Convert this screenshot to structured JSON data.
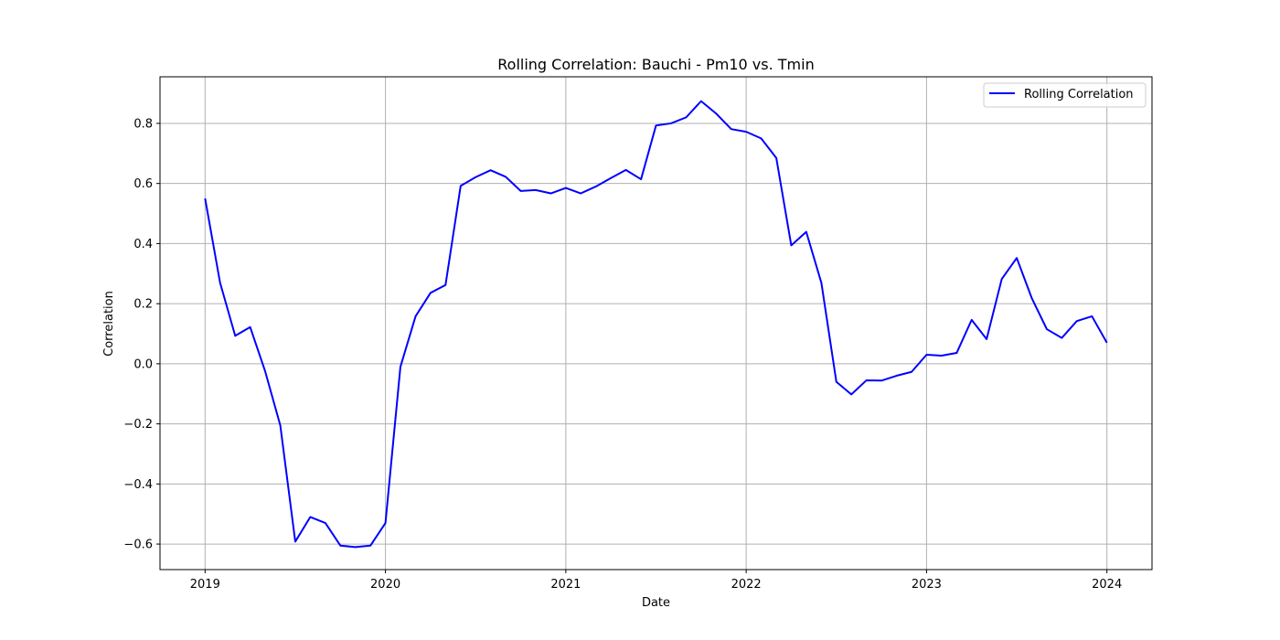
{
  "chart_data": {
    "type": "line",
    "title": "Rolling Correlation: Bauchi - Pm10 vs. Tmin",
    "xlabel": "Date",
    "ylabel": "Correlation",
    "xlim": [
      2018.75,
      2024.25
    ],
    "ylim": [
      -0.685,
      0.955
    ],
    "x_ticks": [
      2019,
      2020,
      2021,
      2022,
      2023,
      2024
    ],
    "x_tick_labels": [
      "2019",
      "2020",
      "2021",
      "2022",
      "2023",
      "2024"
    ],
    "y_ticks": [
      -0.6,
      -0.4,
      -0.2,
      0.0,
      0.2,
      0.4,
      0.6,
      0.8
    ],
    "y_tick_labels": [
      "−0.6",
      "−0.4",
      "−0.2",
      "0.0",
      "0.2",
      "0.4",
      "0.6",
      "0.8"
    ],
    "grid": true,
    "legend_position": "top-right",
    "series": [
      {
        "name": "Rolling Correlation",
        "color": "#0000ff",
        "x": [
          2019.0,
          2019.083,
          2019.167,
          2019.25,
          2019.333,
          2019.417,
          2019.5,
          2019.583,
          2019.667,
          2019.75,
          2019.833,
          2019.917,
          2020.0,
          2020.083,
          2020.167,
          2020.25,
          2020.333,
          2020.417,
          2020.5,
          2020.583,
          2020.667,
          2020.75,
          2020.833,
          2020.917,
          2021.0,
          2021.083,
          2021.167,
          2021.25,
          2021.333,
          2021.417,
          2021.5,
          2021.583,
          2021.667,
          2021.75,
          2021.833,
          2021.917,
          2022.0,
          2022.083,
          2022.167,
          2022.25,
          2022.333,
          2022.417,
          2022.5,
          2022.583,
          2022.667,
          2022.75,
          2022.833,
          2022.917,
          2023.0,
          2023.083,
          2023.167,
          2023.25,
          2023.333,
          2023.417,
          2023.5,
          2023.583,
          2023.667,
          2023.75,
          2023.833,
          2023.917,
          2024.0
        ],
        "values": [
          0.55,
          0.27,
          0.093,
          0.122,
          -0.025,
          -0.205,
          -0.592,
          -0.51,
          -0.53,
          -0.605,
          -0.61,
          -0.605,
          -0.53,
          -0.01,
          0.158,
          0.236,
          0.262,
          0.592,
          0.621,
          0.644,
          0.622,
          0.575,
          0.578,
          0.567,
          0.585,
          0.567,
          0.59,
          0.618,
          0.645,
          0.614,
          0.793,
          0.8,
          0.82,
          0.874,
          0.833,
          0.781,
          0.772,
          0.75,
          0.685,
          0.394,
          0.439,
          0.269,
          -0.06,
          -0.102,
          -0.055,
          -0.056,
          -0.04,
          -0.027,
          0.03,
          0.027,
          0.036,
          0.146,
          0.082,
          0.282,
          0.352,
          0.219,
          0.115,
          0.086,
          0.142,
          0.158,
          0.07
        ]
      }
    ]
  }
}
